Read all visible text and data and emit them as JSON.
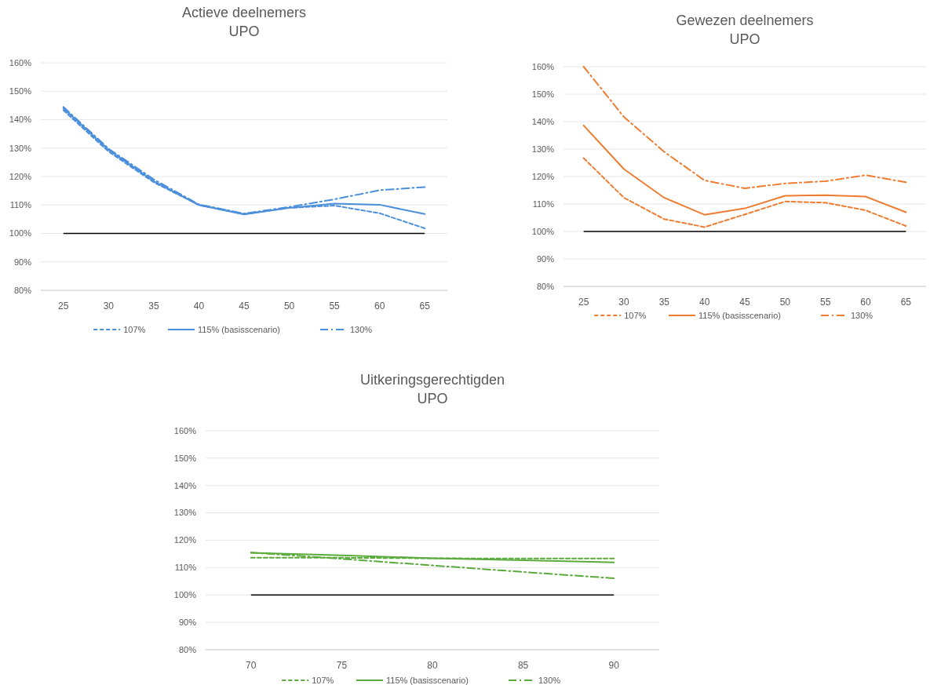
{
  "chart_data": [
    {
      "type": "line",
      "title": "Actieve deelnemers\nUPO",
      "x": [
        25,
        30,
        35,
        40,
        45,
        50,
        55,
        60,
        65
      ],
      "xlim": [
        22.5,
        67.5
      ],
      "xticks": [
        25,
        30,
        35,
        40,
        45,
        50,
        55,
        60,
        65
      ],
      "ylim": [
        80,
        160
      ],
      "yticks": [
        {
          "value": 80,
          "label": "80%"
        },
        {
          "value": 90,
          "label": "90%"
        },
        {
          "value": 100,
          "label": "100%"
        },
        {
          "value": 110,
          "label": "110%"
        },
        {
          "value": 120,
          "label": "120%"
        },
        {
          "value": 130,
          "label": "130%"
        },
        {
          "value": 140,
          "label": "140%"
        },
        {
          "value": 150,
          "label": "150%"
        },
        {
          "value": 160,
          "label": "160%"
        }
      ],
      "grid": "y",
      "legend": "bottom",
      "marker": "none",
      "series": [
        {
          "name": "107%",
          "color": "#4a8fdb",
          "line_style": "dashed",
          "values": [
            143.3,
            128.8,
            118,
            110,
            106.8,
            109,
            109.8,
            107.1,
            101.8
          ]
        },
        {
          "name": "115% (basisscenario)",
          "color": "#4a8fdb",
          "line_style": "solid",
          "values": [
            144,
            129.4,
            118.4,
            110,
            106.7,
            109,
            110.5,
            110.1,
            106.8
          ]
        },
        {
          "name": "130%",
          "color": "#4a8fdb",
          "line_style": "dashdot",
          "values": [
            144.5,
            129.8,
            119,
            110.2,
            107,
            109.3,
            112,
            115.2,
            116.3
          ]
        }
      ],
      "ref_lines": [
        {
          "axis": "y",
          "value": 100,
          "color": "#000000"
        }
      ]
    },
    {
      "type": "line",
      "title": "Gewezen deelnemers\nUPO",
      "x": [
        25,
        30,
        35,
        40,
        45,
        50,
        55,
        60,
        65
      ],
      "xlim": [
        22.5,
        67.5
      ],
      "xticks": [
        25,
        30,
        35,
        40,
        45,
        50,
        55,
        60,
        65
      ],
      "ylim": [
        80,
        160
      ],
      "yticks": [
        {
          "value": 80,
          "label": "80%"
        },
        {
          "value": 90,
          "label": "90%"
        },
        {
          "value": 100,
          "label": "100%"
        },
        {
          "value": 110,
          "label": "110%"
        },
        {
          "value": 120,
          "label": "120%"
        },
        {
          "value": 130,
          "label": "130%"
        },
        {
          "value": 140,
          "label": "140%"
        },
        {
          "value": 150,
          "label": "150%"
        },
        {
          "value": 160,
          "label": "160%"
        }
      ],
      "grid": "y",
      "legend": "bottom",
      "marker": "none",
      "series": [
        {
          "name": "107%",
          "color": "#ed7d31",
          "line_style": "dashed",
          "values": [
            126.7,
            112.3,
            104.5,
            101.6,
            106.2,
            110.9,
            110.5,
            107.7,
            102
          ]
        },
        {
          "name": "115% (basisscenario)",
          "color": "#ed7d31",
          "line_style": "solid",
          "values": [
            138.6,
            122.7,
            112.3,
            106.1,
            108.4,
            113,
            113.2,
            112.7,
            107
          ]
        },
        {
          "name": "130%",
          "color": "#ed7d31",
          "line_style": "dashdot",
          "values": [
            160,
            141.7,
            129,
            118.6,
            115.7,
            117.5,
            118.3,
            120.5,
            117.9
          ]
        }
      ],
      "ref_lines": [
        {
          "axis": "y",
          "value": 100,
          "color": "#000000"
        }
      ]
    },
    {
      "type": "line",
      "title": "Uitkeringsgerechtigden\nUPO",
      "x": [
        70,
        75,
        80,
        85,
        90
      ],
      "xlim": [
        67.5,
        92.5
      ],
      "xticks": [
        70,
        75,
        80,
        85,
        90
      ],
      "ylim": [
        80,
        160
      ],
      "yticks": [
        {
          "value": 80,
          "label": "80%"
        },
        {
          "value": 90,
          "label": "90%"
        },
        {
          "value": 100,
          "label": "100%"
        },
        {
          "value": 110,
          "label": "110%"
        },
        {
          "value": 120,
          "label": "120%"
        },
        {
          "value": 130,
          "label": "130%"
        },
        {
          "value": 140,
          "label": "140%"
        },
        {
          "value": 150,
          "label": "150%"
        },
        {
          "value": 160,
          "label": "160%"
        }
      ],
      "grid": "y",
      "legend": "bottom",
      "marker": "none",
      "series": [
        {
          "name": "107%",
          "color": "#5aab3c",
          "line_style": "dashed",
          "values": [
            113.6,
            113.6,
            113.4,
            113.3,
            113.3
          ]
        },
        {
          "name": "115% (basisscenario)",
          "color": "#5aab3c",
          "line_style": "solid",
          "values": [
            115.4,
            114.5,
            113.4,
            112.7,
            111.9
          ]
        },
        {
          "name": "130%",
          "color": "#5aab3c",
          "line_style": "dashdot",
          "values": [
            115.5,
            113.2,
            110.8,
            108.4,
            106.1
          ]
        }
      ],
      "ref_lines": [
        {
          "axis": "y",
          "value": 100,
          "color": "#000000"
        }
      ]
    }
  ]
}
